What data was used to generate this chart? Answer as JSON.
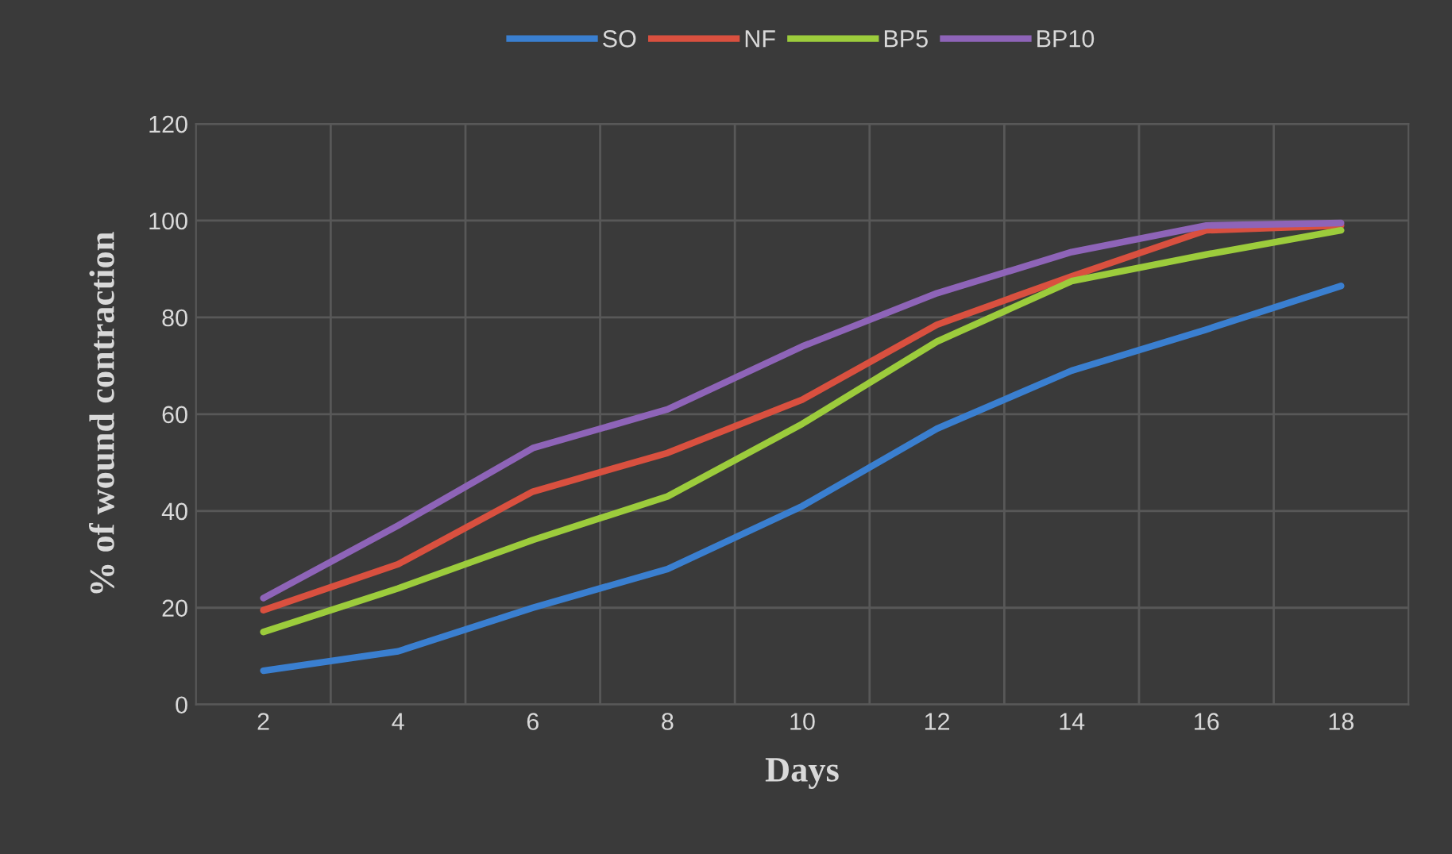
{
  "chart_data": {
    "type": "line",
    "xlabel": "Days",
    "ylabel": "% of wound contraction",
    "categories": [
      "2",
      "4",
      "6",
      "8",
      "10",
      "12",
      "14",
      "16",
      "18"
    ],
    "series": [
      {
        "name": "SO",
        "color": "#3a7fd0",
        "values": [
          7,
          11,
          20,
          28,
          41,
          57,
          69,
          77.5,
          86.5
        ]
      },
      {
        "name": "NF",
        "color": "#d9503f",
        "values": [
          19.5,
          29,
          44,
          52,
          63,
          78.5,
          88.5,
          98,
          99
        ]
      },
      {
        "name": "BP5",
        "color": "#9ccc3c",
        "values": [
          15,
          24,
          34,
          43,
          58,
          75,
          87.5,
          93,
          98
        ]
      },
      {
        "name": "BP10",
        "color": "#8e64b8",
        "values": [
          22,
          37,
          53,
          61,
          74,
          85,
          93.5,
          99,
          99.5
        ]
      }
    ],
    "ylim": [
      0,
      120
    ],
    "yticks": [
      0,
      20,
      40,
      60,
      80,
      100,
      120
    ],
    "grid": true,
    "legend": "top",
    "marker": "none",
    "line_style": "solid"
  }
}
